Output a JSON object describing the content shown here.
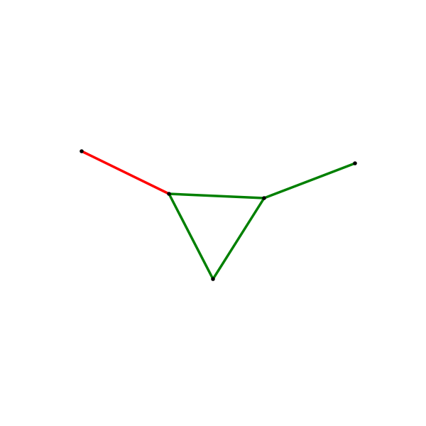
{
  "diagram": {
    "kind": "graph",
    "colors": {
      "background": "#ffffff",
      "node": "#000000",
      "edge_red": "#ff0000",
      "edge_green": "#008000"
    },
    "nodes": [
      {
        "id": "n1",
        "name": "graph-node-left"
      },
      {
        "id": "n2",
        "name": "graph-node-triangle-left"
      },
      {
        "id": "n3",
        "name": "graph-node-triangle-right"
      },
      {
        "id": "n4",
        "name": "graph-node-right"
      },
      {
        "id": "n5",
        "name": "graph-node-triangle-bottom"
      }
    ],
    "edges": [
      {
        "from": "n1",
        "to": "n2",
        "color": "#ff0000",
        "name": "edge-red"
      },
      {
        "from": "n2",
        "to": "n3",
        "color": "#008000",
        "name": "edge-green-top"
      },
      {
        "from": "n2",
        "to": "n5",
        "color": "#008000",
        "name": "edge-green-left"
      },
      {
        "from": "n3",
        "to": "n5",
        "color": "#008000",
        "name": "edge-green-right"
      },
      {
        "from": "n3",
        "to": "n4",
        "color": "#008000",
        "name": "edge-green-outer"
      }
    ]
  }
}
